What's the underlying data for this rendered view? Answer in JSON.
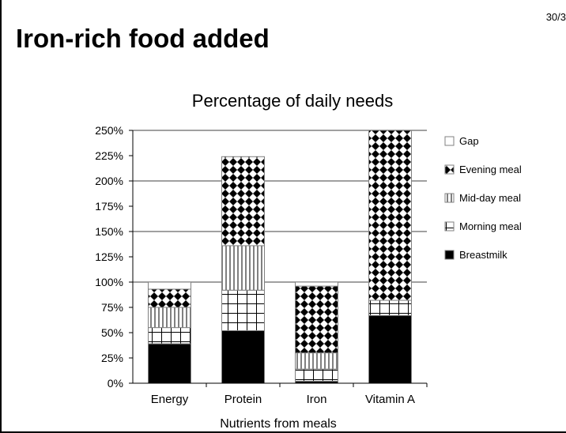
{
  "slide": {
    "title": "Iron-rich food added",
    "page_number": "30/3"
  },
  "chart_data": {
    "type": "bar",
    "stacked": true,
    "title": "Percentage of daily needs",
    "xlabel": "Nutrients from meals",
    "ylabel": "",
    "ylim": [
      0,
      250
    ],
    "yticks": [
      "0%",
      "25%",
      "50%",
      "75%",
      "100%",
      "125%",
      "150%",
      "175%",
      "200%",
      "225%",
      "250%"
    ],
    "grid": "horizontal at 100%, 150%, 200%, 250%",
    "legend": "right",
    "categories": [
      "Energy",
      "Protein",
      "Iron",
      "Vitamin A"
    ],
    "series": [
      {
        "name": "Breastmilk",
        "pattern": "solid",
        "values": [
          39,
          52,
          2,
          67
        ]
      },
      {
        "name": "Morning meal",
        "pattern": "grid",
        "values": [
          16,
          40,
          12,
          15
        ]
      },
      {
        "name": "Mid-day meal",
        "pattern": "vertical",
        "values": [
          20,
          44,
          16,
          0
        ]
      },
      {
        "name": "Evening meal",
        "pattern": "diamond",
        "values": [
          18,
          88,
          66,
          168
        ]
      },
      {
        "name": "Gap",
        "pattern": "empty",
        "values": [
          7,
          0,
          4,
          0
        ]
      }
    ]
  }
}
